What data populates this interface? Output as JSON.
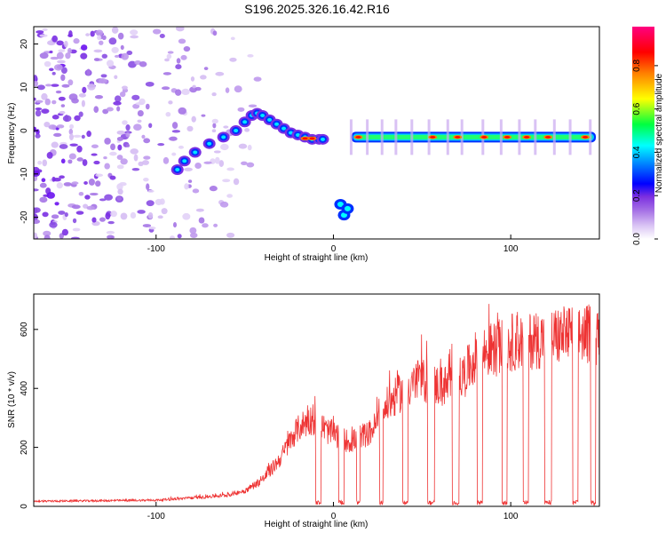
{
  "chart_data": [
    {
      "type": "heatmap",
      "title": "S196.2025.326.16.42.R16",
      "xlabel": "Height of straight line (km)",
      "ylabel": "Frequency (Hz)",
      "xlim": [
        -169,
        150
      ],
      "ylim": [
        -25,
        24
      ],
      "xticks": [
        -100,
        0,
        100
      ],
      "yticks": [
        -20,
        -10,
        0,
        10,
        20
      ],
      "colorbar": {
        "label": "Normalized spectral amplitude",
        "range": [
          0,
          0.98
        ],
        "ticks": [
          0.0,
          0.2,
          0.4,
          0.6,
          0.8
        ],
        "palette": [
          "#ffffff",
          "#dcc7f5",
          "#a875e6",
          "#7b2fe0",
          "#5d00ff",
          "#0000ff",
          "#008cff",
          "#00ffff",
          "#00ff40",
          "#7fff00",
          "#ffff00",
          "#ff8000",
          "#ff0000",
          "#ff0080"
        ]
      },
      "ridge": {
        "description_points_x": [
          -88,
          -84,
          -78,
          -70,
          -62,
          -55,
          -50,
          -46,
          -43,
          -40,
          -36,
          -32,
          -28,
          -24,
          -20,
          -16,
          -12,
          -8,
          -6
        ],
        "freq_hz": [
          -9,
          -7,
          -5,
          -3,
          -1.5,
          0,
          2,
          3.5,
          4,
          3.5,
          2.5,
          1.5,
          0.5,
          -0.5,
          -1,
          -1.5,
          -2,
          -2,
          -2
        ],
        "dip": {
          "x": [
            4,
            6,
            8
          ],
          "freq_hz": [
            -17,
            -19.5,
            -18
          ]
        },
        "stable_band": {
          "x_from": 10,
          "x_to": 148,
          "freq_hz": -1.5
        },
        "hot_spots_x": [
          -16,
          -12,
          14,
          56,
          70,
          85,
          98,
          109,
          121,
          142
        ]
      },
      "noise_region": {
        "x_from": -169,
        "x_to": -50,
        "freq_from": -25,
        "freq_to": 24
      }
    },
    {
      "type": "line",
      "title": "",
      "xlabel": "Height of straight line (km)",
      "ylabel": "SNR (10 * v/v)",
      "xlim": [
        -169,
        150
      ],
      "ylim": [
        0,
        720
      ],
      "xticks": [
        -100,
        0,
        100
      ],
      "yticks": [
        0,
        200,
        400,
        600
      ],
      "color": "#ee3333",
      "envelope": {
        "x": [
          -169,
          -100,
          -80,
          -60,
          -50,
          -40,
          -30,
          -22,
          -18,
          -12,
          -8,
          -4,
          0,
          5,
          10,
          15,
          20,
          25,
          30,
          35,
          40,
          45,
          50,
          55,
          60,
          65,
          70,
          75,
          80,
          85,
          90,
          95,
          100,
          110,
          120,
          130,
          140,
          150
        ],
        "y": [
          18,
          22,
          30,
          40,
          55,
          95,
          170,
          260,
          290,
          310,
          300,
          270,
          260,
          240,
          230,
          250,
          260,
          300,
          360,
          390,
          420,
          440,
          450,
          440,
          430,
          430,
          440,
          480,
          530,
          550,
          560,
          570,
          585,
          590,
          600,
          610,
          615,
          610
        ]
      },
      "gaps": [
        {
          "x": [
            -10,
            -7
          ]
        },
        {
          "x": [
            3,
            6
          ]
        },
        {
          "x": [
            13,
            15
          ]
        },
        {
          "x": [
            26,
            28
          ]
        },
        {
          "x": [
            39,
            42
          ]
        },
        {
          "x": [
            53,
            57
          ]
        },
        {
          "x": [
            67,
            71
          ]
        },
        {
          "x": [
            81,
            84
          ]
        },
        {
          "x": [
            95,
            98
          ]
        },
        {
          "x": [
            107,
            110
          ]
        },
        {
          "x": [
            119,
            123
          ]
        },
        {
          "x": [
            135,
            138
          ]
        },
        {
          "x": [
            145,
            148
          ]
        }
      ]
    }
  ]
}
